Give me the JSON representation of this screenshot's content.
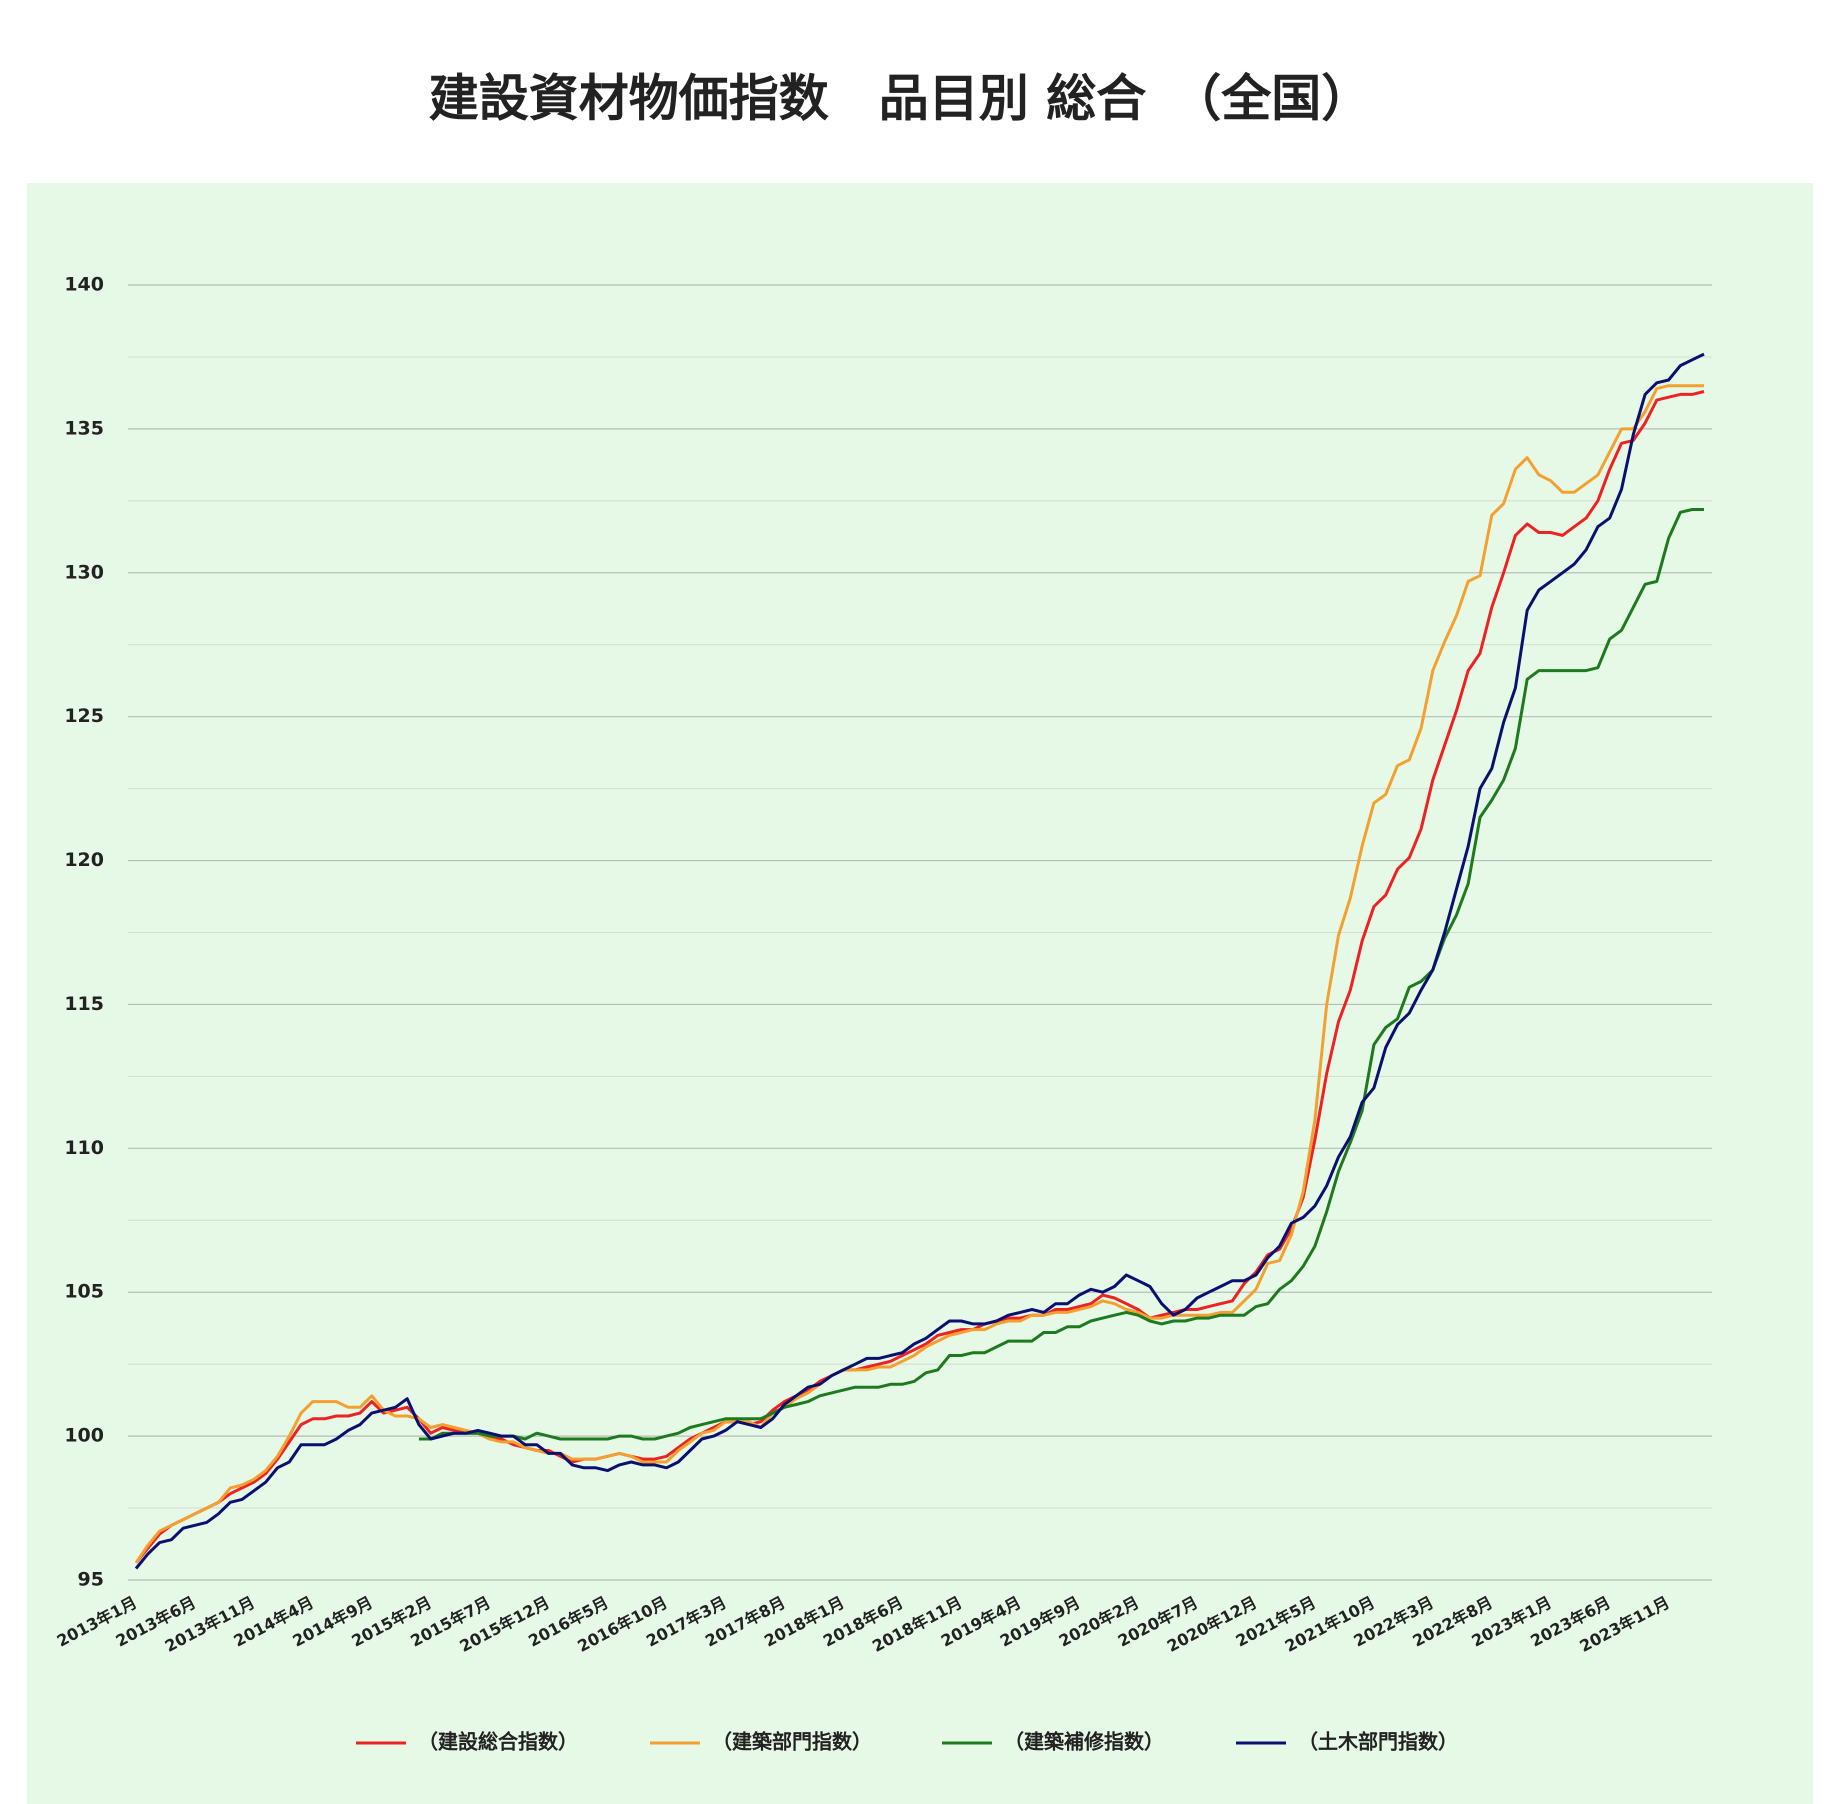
{
  "chart_data": {
    "type": "line",
    "title": "建設資材物価指数　品目別 総合　（全国）",
    "categories": [
      "2013年1月",
      null,
      null,
      null,
      null,
      "2013年6月",
      null,
      null,
      null,
      null,
      "2013年11月",
      null,
      null,
      null,
      null,
      "2014年4月",
      null,
      null,
      null,
      null,
      "2014年9月",
      null,
      null,
      null,
      null,
      "2015年2月",
      null,
      null,
      null,
      null,
      "2015年7月",
      null,
      null,
      null,
      null,
      "2015年12月",
      null,
      null,
      null,
      null,
      "2016年5月",
      null,
      null,
      null,
      null,
      "2016年10月",
      null,
      null,
      null,
      null,
      "2017年3月",
      null,
      null,
      null,
      null,
      "2017年8月",
      null,
      null,
      null,
      null,
      "2018年1月",
      null,
      null,
      null,
      null,
      "2018年6月",
      null,
      null,
      null,
      null,
      "2018年11月",
      null,
      null,
      null,
      null,
      "2019年4月",
      null,
      null,
      null,
      null,
      "2019年9月",
      null,
      null,
      null,
      null,
      "2020年2月",
      null,
      null,
      null,
      null,
      "2020年7月",
      null,
      null,
      null,
      null,
      "2020年12月",
      null,
      null,
      null,
      null,
      "2021年5月",
      null,
      null,
      null,
      null,
      "2021年10月",
      null,
      null,
      null,
      null,
      "2022年3月",
      null,
      null,
      null,
      null,
      "2022年8月",
      null,
      null,
      null,
      null,
      "2023年1月",
      null,
      null,
      null,
      null,
      "2023年6月",
      null,
      null,
      null,
      null,
      "2023年11月",
      null,
      null,
      null
    ],
    "series": [
      {
        "name": "（建設総合指数）",
        "color": "#ee2222",
        "values": [
          95.6,
          96.1,
          96.6,
          96.9,
          97.1,
          97.3,
          97.5,
          97.7,
          98.0,
          98.2,
          98.4,
          98.7,
          99.2,
          99.8,
          100.4,
          100.6,
          100.6,
          100.7,
          100.7,
          100.8,
          101.2,
          100.8,
          100.9,
          101.0,
          100.6,
          100.1,
          100.3,
          100.2,
          100.1,
          100.1,
          99.9,
          99.9,
          99.7,
          99.6,
          99.5,
          99.5,
          99.3,
          99.1,
          99.2,
          99.2,
          99.3,
          99.4,
          99.3,
          99.2,
          99.2,
          99.3,
          99.6,
          99.9,
          100.1,
          100.3,
          100.5,
          100.5,
          100.4,
          100.5,
          100.9,
          101.2,
          101.4,
          101.6,
          101.9,
          102.1,
          102.3,
          102.3,
          102.4,
          102.5,
          102.6,
          102.8,
          103.0,
          103.2,
          103.5,
          103.6,
          103.7,
          103.7,
          103.9,
          104.0,
          104.1,
          104.1,
          104.2,
          104.2,
          104.4,
          104.4,
          104.5,
          104.6,
          104.9,
          104.8,
          104.6,
          104.4,
          104.1,
          104.2,
          104.3,
          104.4,
          104.4,
          104.5,
          104.6,
          104.7,
          105.3,
          105.7,
          106.3,
          106.5,
          107.2,
          108.3,
          110.3,
          112.6,
          114.4,
          115.5,
          117.2,
          118.4,
          118.8,
          119.7,
          120.1,
          121.1,
          122.8,
          124.0,
          125.2,
          126.6,
          127.2,
          128.8,
          130.0,
          131.3,
          131.7,
          131.4,
          131.4,
          131.3,
          131.6,
          131.9,
          132.5,
          133.6,
          134.5,
          134.6,
          135.2,
          136.0,
          136.1,
          136.2,
          136.2,
          136.3
        ]
      },
      {
        "name": "（建築部門指数）",
        "color": "#f4a030",
        "values": [
          95.6,
          96.2,
          96.7,
          96.9,
          97.1,
          97.3,
          97.5,
          97.7,
          98.2,
          98.3,
          98.5,
          98.8,
          99.3,
          100.0,
          100.8,
          101.2,
          101.2,
          101.2,
          101.0,
          101.0,
          101.4,
          100.9,
          100.7,
          100.7,
          100.6,
          100.3,
          100.4,
          100.3,
          100.2,
          100.1,
          99.9,
          99.8,
          99.8,
          99.6,
          99.5,
          99.4,
          99.4,
          99.2,
          99.2,
          99.2,
          99.3,
          99.4,
          99.3,
          99.1,
          99.1,
          99.1,
          99.5,
          99.8,
          100.1,
          100.2,
          100.5,
          100.5,
          100.5,
          100.3,
          100.8,
          101.0,
          101.3,
          101.5,
          101.8,
          102.1,
          102.3,
          102.3,
          102.3,
          102.4,
          102.4,
          102.6,
          102.8,
          103.1,
          103.3,
          103.5,
          103.6,
          103.7,
          103.7,
          103.9,
          104.0,
          104.0,
          104.2,
          104.2,
          104.3,
          104.3,
          104.4,
          104.5,
          104.7,
          104.6,
          104.4,
          104.3,
          104.1,
          104.1,
          104.2,
          104.2,
          104.2,
          104.2,
          104.3,
          104.3,
          104.7,
          105.1,
          106.0,
          106.1,
          107.0,
          108.5,
          111.0,
          115.0,
          117.4,
          118.7,
          120.5,
          122.0,
          122.3,
          123.3,
          123.5,
          124.6,
          126.6,
          127.6,
          128.5,
          129.7,
          129.9,
          132.0,
          132.4,
          133.6,
          134.0,
          133.4,
          133.2,
          132.8,
          132.8,
          133.1,
          133.4,
          134.2,
          135.0,
          135.0,
          135.6,
          136.4,
          136.5,
          136.5,
          136.5,
          136.5
        ]
      },
      {
        "name": "（建築補修指数）",
        "color": "#1e7a1e",
        "values": [
          null,
          null,
          null,
          null,
          null,
          null,
          null,
          null,
          null,
          null,
          null,
          null,
          null,
          null,
          null,
          null,
          null,
          null,
          null,
          null,
          null,
          null,
          null,
          null,
          99.9,
          99.9,
          100.1,
          100.1,
          100.1,
          100.1,
          100.0,
          100.0,
          100.0,
          99.9,
          100.1,
          100.0,
          99.9,
          99.9,
          99.9,
          99.9,
          99.9,
          100.0,
          100.0,
          99.9,
          99.9,
          100.0,
          100.1,
          100.3,
          100.4,
          100.5,
          100.6,
          100.6,
          100.6,
          100.6,
          100.8,
          101.0,
          101.1,
          101.2,
          101.4,
          101.5,
          101.6,
          101.7,
          101.7,
          101.7,
          101.8,
          101.8,
          101.9,
          102.2,
          102.3,
          102.8,
          102.8,
          102.9,
          102.9,
          103.1,
          103.3,
          103.3,
          103.3,
          103.6,
          103.6,
          103.8,
          103.8,
          104.0,
          104.1,
          104.2,
          104.3,
          104.2,
          104.0,
          103.9,
          104.0,
          104.0,
          104.1,
          104.1,
          104.2,
          104.2,
          104.2,
          104.5,
          104.6,
          105.1,
          105.4,
          105.9,
          106.6,
          107.8,
          109.2,
          110.2,
          111.3,
          113.6,
          114.2,
          114.5,
          115.6,
          115.8,
          116.2,
          117.3,
          118.1,
          119.2,
          121.5,
          122.1,
          122.8,
          123.9,
          126.3,
          126.6,
          126.6,
          126.6,
          126.6,
          126.6,
          126.7,
          127.7,
          128.0,
          128.8,
          129.6,
          129.7,
          131.2,
          132.1,
          132.2,
          132.2
        ]
      },
      {
        "name": "（土木部門指数）",
        "color": "#0a1070",
        "values": [
          95.4,
          95.9,
          96.3,
          96.4,
          96.8,
          96.9,
          97.0,
          97.3,
          97.7,
          97.8,
          98.1,
          98.4,
          98.9,
          99.1,
          99.7,
          99.7,
          99.7,
          99.9,
          100.2,
          100.4,
          100.8,
          100.9,
          101.0,
          101.3,
          100.4,
          99.9,
          100.0,
          100.1,
          100.1,
          100.2,
          100.1,
          100.0,
          100.0,
          99.7,
          99.7,
          99.4,
          99.4,
          99.0,
          98.9,
          98.9,
          98.8,
          99.0,
          99.1,
          99.0,
          99.0,
          98.9,
          99.1,
          99.5,
          99.9,
          100.0,
          100.2,
          100.5,
          100.4,
          100.3,
          100.6,
          101.1,
          101.4,
          101.7,
          101.8,
          102.1,
          102.3,
          102.5,
          102.7,
          102.7,
          102.8,
          102.9,
          103.2,
          103.4,
          103.7,
          104.0,
          104.0,
          103.9,
          103.9,
          104.0,
          104.2,
          104.3,
          104.4,
          104.3,
          104.6,
          104.6,
          104.9,
          105.1,
          105.0,
          105.2,
          105.6,
          105.4,
          105.2,
          104.6,
          104.2,
          104.4,
          104.8,
          105.0,
          105.2,
          105.4,
          105.4,
          105.6,
          106.2,
          106.6,
          107.4,
          107.6,
          108.0,
          108.7,
          109.7,
          110.4,
          111.6,
          112.1,
          113.5,
          114.3,
          114.7,
          115.5,
          116.2,
          117.5,
          119.0,
          120.5,
          122.5,
          123.2,
          124.8,
          126.0,
          128.7,
          129.4,
          129.7,
          130.0,
          130.3,
          130.8,
          131.6,
          131.9,
          132.9,
          134.8,
          136.2,
          136.6,
          136.7,
          137.2,
          137.4,
          137.6
        ]
      }
    ],
    "ylim": [
      95,
      140
    ],
    "yticks": [
      95,
      100,
      105,
      110,
      115,
      120,
      125,
      130,
      135,
      140
    ],
    "grid": true,
    "legend": "bottom"
  }
}
